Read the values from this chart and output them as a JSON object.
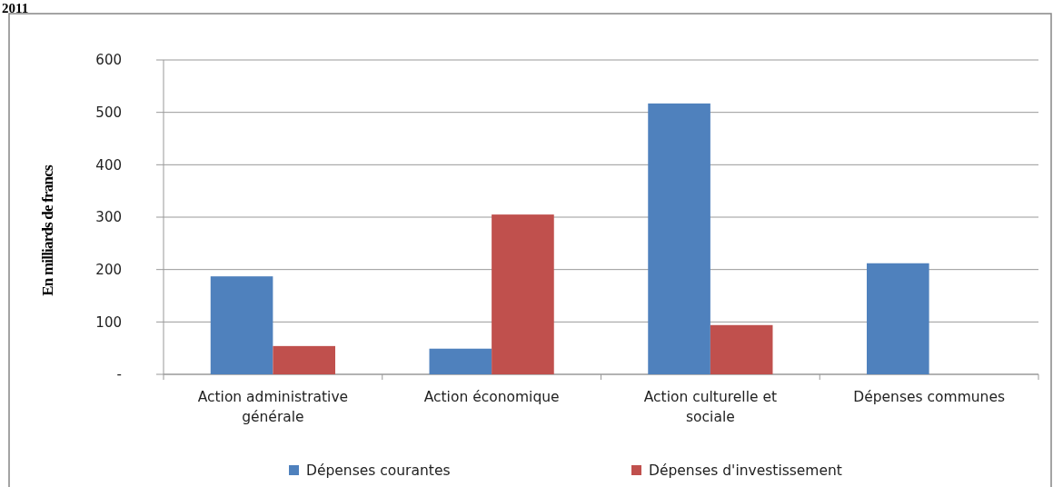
{
  "chart_data": {
    "type": "bar",
    "title": "2011",
    "ylabel": "En milliards de francs",
    "categories": [
      "Action administrative générale",
      "Action économique",
      "Action culturelle et sociale",
      "Dépenses communes"
    ],
    "series": [
      {
        "name": "Dépenses courantes",
        "color": "#4f81bd",
        "values": [
          187,
          49,
          517,
          212
        ]
      },
      {
        "name": "Dépenses d'investissement",
        "color": "#c0504d",
        "values": [
          54,
          305,
          94,
          null
        ]
      }
    ],
    "ylim": [
      0,
      600
    ],
    "yticks": [
      {
        "value": 0,
        "label": "-"
      },
      100,
      200,
      300,
      400,
      500,
      600
    ],
    "grid": "y",
    "legend": "bottom"
  }
}
